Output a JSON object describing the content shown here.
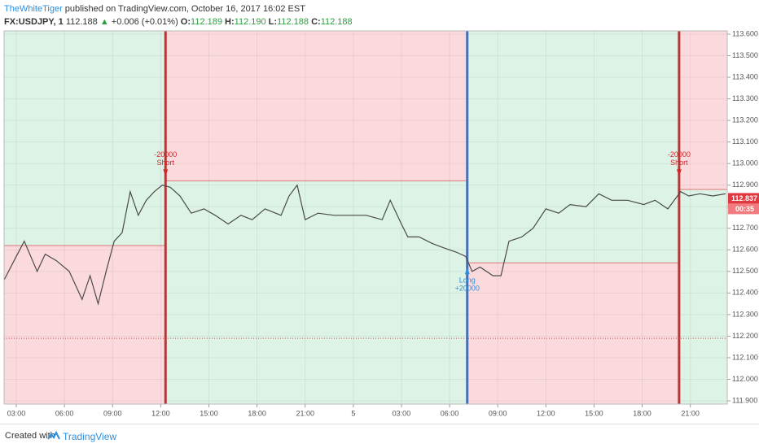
{
  "header": {
    "author": "TheWhiteTiger",
    "published": "published on TradingView.com, October 16, 2017 16:02 EST",
    "symbol": "FX:USDJPY, 1",
    "price": "112.188",
    "change": "+0.006 (+0.01%)",
    "o_label": "O:",
    "o": "112.189",
    "h_label": "H:",
    "h": "112.190",
    "l_label": "L:",
    "l": "112.188",
    "c_label": "C:",
    "c": "112.188"
  },
  "footer": {
    "created": "Created with",
    "brand": "TradingView"
  },
  "chart_data": {
    "type": "line",
    "color": "#4a4a4a",
    "x": [
      2.24,
      3.0,
      3.5,
      4.3,
      4.8,
      5.5,
      6.3,
      7.1,
      7.6,
      8.1,
      8.6,
      9.1,
      9.6,
      10.1,
      10.6,
      11.1,
      11.6,
      12.1,
      12.6,
      13.2,
      13.9,
      14.7,
      15.4,
      16.2,
      17.0,
      17.7,
      18.5,
      19.5,
      20.0,
      20.5,
      21.0,
      21.8,
      22.8,
      23.8,
      24.8,
      25.8,
      26.3,
      27.0,
      27.4,
      28.1,
      28.9,
      29.6,
      30.4,
      31.0,
      31.4,
      31.9,
      32.7,
      33.2,
      33.7,
      34.5,
      35.2,
      36.0,
      36.8,
      37.5,
      38.5,
      39.3,
      40.1,
      41.1,
      42.1,
      42.8,
      43.6,
      44.4,
      44.9,
      45.6,
      46.4,
      47.2
    ],
    "values": [
      112.46,
      112.57,
      112.64,
      112.5,
      112.58,
      112.55,
      112.5,
      112.37,
      112.48,
      112.35,
      112.5,
      112.64,
      112.68,
      112.87,
      112.76,
      112.83,
      112.87,
      112.9,
      112.89,
      112.85,
      112.77,
      112.79,
      112.76,
      112.72,
      112.76,
      112.74,
      112.79,
      112.76,
      112.85,
      112.9,
      112.74,
      112.77,
      112.76,
      112.76,
      112.76,
      112.74,
      112.83,
      112.72,
      112.66,
      112.66,
      112.63,
      112.61,
      112.59,
      112.57,
      112.5,
      112.52,
      112.48,
      112.48,
      112.64,
      112.66,
      112.7,
      112.79,
      112.77,
      112.81,
      112.8,
      112.86,
      112.83,
      112.83,
      112.81,
      112.83,
      112.79,
      112.87,
      112.85,
      112.86,
      112.85,
      112.86
    ],
    "xlim": [
      2.24,
      47.3
    ],
    "ylim": [
      111.885,
      113.615
    ],
    "xticks": [
      {
        "value": 3,
        "label": "03:00"
      },
      {
        "value": 6,
        "label": "06:00"
      },
      {
        "value": 9,
        "label": "09:00"
      },
      {
        "value": 12,
        "label": "12:00"
      },
      {
        "value": 15,
        "label": "15:00"
      },
      {
        "value": 18,
        "label": "18:00"
      },
      {
        "value": 21,
        "label": "21:00"
      },
      {
        "value": 24,
        "label": "5"
      },
      {
        "value": 27,
        "label": "03:00"
      },
      {
        "value": 30,
        "label": "06:00"
      },
      {
        "value": 33,
        "label": "09:00"
      },
      {
        "value": 36,
        "label": "12:00"
      },
      {
        "value": 39,
        "label": "15:00"
      },
      {
        "value": 42,
        "label": "18:00"
      },
      {
        "value": 45,
        "label": "21:00"
      }
    ],
    "yticks": [
      {
        "value": 111.9,
        "label": "111.900"
      },
      {
        "value": 112.0,
        "label": "112.000"
      },
      {
        "value": 112.1,
        "label": "112.100"
      },
      {
        "value": 112.2,
        "label": "112.200"
      },
      {
        "value": 112.3,
        "label": "112.300"
      },
      {
        "value": 112.4,
        "label": "112.400"
      },
      {
        "value": 112.5,
        "label": "112.500"
      },
      {
        "value": 112.6,
        "label": "112.600"
      },
      {
        "value": 112.7,
        "label": "112.700"
      },
      {
        "value": 112.8,
        "label": "112.800"
      },
      {
        "value": 112.9,
        "label": "112.900"
      },
      {
        "value": 113.0,
        "label": "113.000"
      },
      {
        "value": 113.1,
        "label": "113.100"
      },
      {
        "value": 113.2,
        "label": "113.200"
      },
      {
        "value": 113.3,
        "label": "113.300"
      },
      {
        "value": 113.4,
        "label": "113.400"
      },
      {
        "value": 113.5,
        "label": "113.500"
      },
      {
        "value": 113.6,
        "label": "113.600"
      }
    ],
    "grid": true,
    "zones": [
      {
        "start": 2.24,
        "end": 12.3,
        "level": 112.62,
        "above_color": "#dcf3e6",
        "below_color": "#fbdadd"
      },
      {
        "start": 12.3,
        "end": 31.1,
        "level": 112.92,
        "above_color": "#fbdadd",
        "below_color": "#dcf3e6"
      },
      {
        "start": 31.1,
        "end": 44.3,
        "level": 112.54,
        "above_color": "#dcf3e6",
        "below_color": "#fbdadd"
      },
      {
        "start": 44.3,
        "end": 47.3,
        "level": 112.88,
        "above_color": "#fbdadd",
        "below_color": "#dcf3e6"
      }
    ],
    "trades": [
      {
        "x": 12.3,
        "price": 112.92,
        "side": "Short",
        "qty": -20000,
        "color": "#b03a3a",
        "label_color": "#d0262a"
      },
      {
        "x": 31.1,
        "price": 112.54,
        "side": "Long",
        "qty": {
          "value": 20000,
          "label": "+20000"
        },
        "color": "#4a6fb0",
        "label_color": "#2a8fe0"
      },
      {
        "x": 44.3,
        "price": 112.92,
        "side": "Short",
        "qty": -20000,
        "color": "#b03a3a",
        "label_color": "#d0262a"
      }
    ],
    "dotted_level": 112.19,
    "last_price": {
      "value": 112.837,
      "label": "112.837"
    },
    "countdown": "00:35"
  }
}
